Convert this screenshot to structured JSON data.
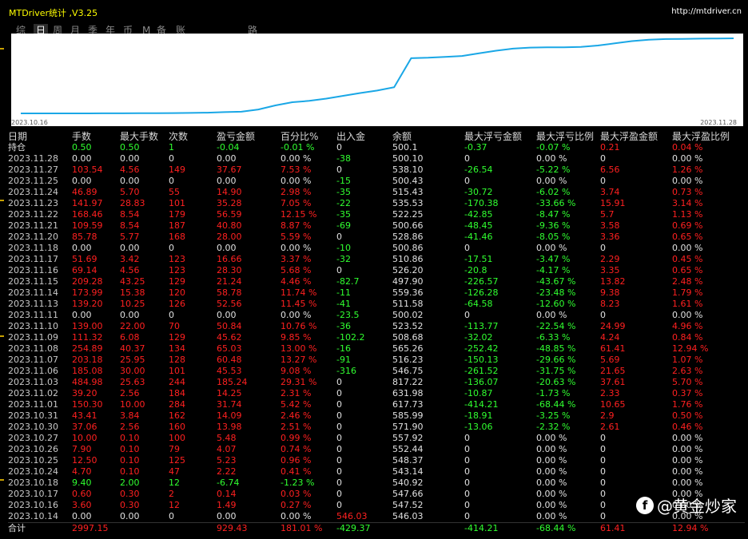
{
  "window": {
    "title": "MTDriver统计 ,V3.25",
    "url": "http://mtdriver.cn"
  },
  "tabs": [
    {
      "label": "综",
      "active": false
    },
    {
      "label": "日",
      "active": true
    },
    {
      "label": "周",
      "active": false
    },
    {
      "label": "月",
      "active": false
    },
    {
      "label": "季",
      "active": false
    },
    {
      "label": "年",
      "active": false
    },
    {
      "label": "币",
      "active": false
    },
    {
      "label": "M",
      "active": false
    },
    {
      "label": "备",
      "active": false
    },
    {
      "label": "账户",
      "active": false
    },
    {
      "label": "路径",
      "active": false
    }
  ],
  "chart_data": {
    "type": "line",
    "x_start": "2023.10.16",
    "x_end": "2023.11.28",
    "values": [
      501.2,
      501.2,
      501.2,
      501.3,
      501.4,
      501.5,
      501.7,
      502.1,
      502.7,
      503.2,
      504.0,
      505.2,
      508.7,
      510.6,
      523.5,
      546.8,
      565.3,
      573.0,
      586.0,
      601.7,
      617.7,
      631.98,
      651.1,
      817.22,
      820,
      825,
      830,
      845,
      860,
      872,
      878,
      880,
      880,
      882,
      890,
      902,
      915,
      923,
      927,
      928,
      929,
      930,
      931
    ],
    "line_color": "#1aa7e6",
    "grid": false
  },
  "columns": [
    "日期",
    "手数",
    "最大手数",
    "次数",
    "盈亏金额",
    "百分比%",
    "出入金",
    "余额",
    "最大浮亏金额",
    "最大浮亏比例",
    "最大浮盈金额",
    "最大浮盈比例"
  ],
  "rows": [
    {
      "c": [
        "持仓",
        "0.50",
        "0.50",
        "1",
        "-0.04",
        "-0.01 %",
        "0",
        "500.1",
        "-0.37",
        "-0.07 %",
        "0.21",
        "0.04 %"
      ],
      "k": [
        "wht",
        "green",
        "green",
        "green",
        "green",
        "green",
        "wht",
        "wht",
        "green",
        "green",
        "red",
        "red"
      ]
    },
    {
      "c": [
        "2023.11.28",
        "0.00",
        "0.00",
        "0",
        "0.00",
        "0.00 %",
        "-38",
        "500.10",
        "0",
        "0.00 %",
        "0",
        "0.00 %"
      ],
      "k": [
        "date",
        "wht",
        "wht",
        "wht",
        "wht",
        "wht",
        "green",
        "wht",
        "wht",
        "wht",
        "wht",
        "wht"
      ]
    },
    {
      "c": [
        "2023.11.27",
        "103.54",
        "4.56",
        "149",
        "37.67",
        "7.53 %",
        "0",
        "538.10",
        "-26.54",
        "-5.22 %",
        "6.56",
        "1.26 %"
      ],
      "k": [
        "date",
        "red",
        "red",
        "red",
        "red",
        "red",
        "wht",
        "wht",
        "green",
        "green",
        "red",
        "red"
      ]
    },
    {
      "c": [
        "2023.11.25",
        "0.00",
        "0.00",
        "0",
        "0.00",
        "0.00 %",
        "-15",
        "500.43",
        "0",
        "0.00 %",
        "0",
        "0.00 %"
      ],
      "k": [
        "date",
        "wht",
        "wht",
        "wht",
        "wht",
        "wht",
        "green",
        "wht",
        "wht",
        "wht",
        "wht",
        "wht"
      ]
    },
    {
      "c": [
        "2023.11.24",
        "46.89",
        "5.70",
        "55",
        "14.90",
        "2.98 %",
        "-35",
        "515.43",
        "-30.72",
        "-6.02 %",
        "3.74",
        "0.73 %"
      ],
      "k": [
        "date",
        "red",
        "red",
        "red",
        "red",
        "red",
        "green",
        "wht",
        "green",
        "green",
        "red",
        "red"
      ]
    },
    {
      "c": [
        "2023.11.23",
        "141.97",
        "28.83",
        "101",
        "35.28",
        "7.05 %",
        "-22",
        "535.53",
        "-170.38",
        "-33.66 %",
        "15.91",
        "3.14 %"
      ],
      "k": [
        "date",
        "red",
        "red",
        "red",
        "red",
        "red",
        "green",
        "wht",
        "green",
        "green",
        "red",
        "red"
      ]
    },
    {
      "c": [
        "2023.11.22",
        "168.46",
        "8.54",
        "179",
        "56.59",
        "12.15 %",
        "-35",
        "522.25",
        "-42.85",
        "-8.47 %",
        "5.7",
        "1.13 %"
      ],
      "k": [
        "date",
        "red",
        "red",
        "red",
        "red",
        "red",
        "green",
        "wht",
        "green",
        "green",
        "red",
        "red"
      ]
    },
    {
      "c": [
        "2023.11.21",
        "109.59",
        "8.54",
        "187",
        "40.80",
        "8.87 %",
        "-69",
        "500.66",
        "-48.45",
        "-9.36 %",
        "3.58",
        "0.69 %"
      ],
      "k": [
        "date",
        "red",
        "red",
        "red",
        "red",
        "red",
        "green",
        "wht",
        "green",
        "green",
        "red",
        "red"
      ]
    },
    {
      "c": [
        "2023.11.20",
        "85.78",
        "5.77",
        "168",
        "28.00",
        "5.59 %",
        "0",
        "528.86",
        "-41.46",
        "-8.05 %",
        "3.36",
        "0.65 %"
      ],
      "k": [
        "date",
        "red",
        "red",
        "red",
        "red",
        "red",
        "wht",
        "wht",
        "green",
        "green",
        "red",
        "red"
      ]
    },
    {
      "c": [
        "2023.11.18",
        "0.00",
        "0.00",
        "0",
        "0.00",
        "0.00 %",
        "-10",
        "500.86",
        "0",
        "0.00 %",
        "0",
        "0.00 %"
      ],
      "k": [
        "date",
        "wht",
        "wht",
        "wht",
        "wht",
        "wht",
        "green",
        "wht",
        "wht",
        "wht",
        "wht",
        "wht"
      ]
    },
    {
      "c": [
        "2023.11.17",
        "51.69",
        "3.42",
        "123",
        "16.66",
        "3.37 %",
        "-32",
        "510.86",
        "-17.51",
        "-3.47 %",
        "2.29",
        "0.45 %"
      ],
      "k": [
        "date",
        "red",
        "red",
        "red",
        "red",
        "red",
        "green",
        "wht",
        "green",
        "green",
        "red",
        "red"
      ]
    },
    {
      "c": [
        "2023.11.16",
        "69.14",
        "4.56",
        "123",
        "28.30",
        "5.68 %",
        "0",
        "526.20",
        "-20.8",
        "-4.17 %",
        "3.35",
        "0.65 %"
      ],
      "k": [
        "date",
        "red",
        "red",
        "red",
        "red",
        "red",
        "wht",
        "wht",
        "green",
        "green",
        "red",
        "red"
      ]
    },
    {
      "c": [
        "2023.11.15",
        "209.28",
        "43.25",
        "129",
        "21.24",
        "4.46 %",
        "-82.7",
        "497.90",
        "-226.57",
        "-43.67 %",
        "13.82",
        "2.48 %"
      ],
      "k": [
        "date",
        "red",
        "red",
        "red",
        "red",
        "red",
        "green",
        "wht",
        "green",
        "green",
        "red",
        "red"
      ]
    },
    {
      "c": [
        "2023.11.14",
        "173.99",
        "15.38",
        "120",
        "58.78",
        "11.74 %",
        "-11",
        "559.36",
        "-126.28",
        "-23.48 %",
        "9.38",
        "1.79 %"
      ],
      "k": [
        "date",
        "red",
        "red",
        "red",
        "red",
        "red",
        "green",
        "wht",
        "green",
        "green",
        "red",
        "red"
      ]
    },
    {
      "c": [
        "2023.11.13",
        "139.20",
        "10.25",
        "126",
        "52.56",
        "11.45 %",
        "-41",
        "511.58",
        "-64.58",
        "-12.60 %",
        "8.23",
        "1.61 %"
      ],
      "k": [
        "date",
        "red",
        "red",
        "red",
        "red",
        "red",
        "green",
        "wht",
        "green",
        "green",
        "red",
        "red"
      ]
    },
    {
      "c": [
        "2023.11.11",
        "0.00",
        "0.00",
        "0",
        "0.00",
        "0.00 %",
        "-23.5",
        "500.02",
        "0",
        "0.00 %",
        "0",
        "0.00 %"
      ],
      "k": [
        "date",
        "wht",
        "wht",
        "wht",
        "wht",
        "wht",
        "green",
        "wht",
        "wht",
        "wht",
        "wht",
        "wht"
      ]
    },
    {
      "c": [
        "2023.11.10",
        "139.00",
        "22.00",
        "70",
        "50.84",
        "10.76 %",
        "-36",
        "523.52",
        "-113.77",
        "-22.54 %",
        "24.99",
        "4.96 %"
      ],
      "k": [
        "date",
        "red",
        "red",
        "red",
        "red",
        "red",
        "green",
        "wht",
        "green",
        "green",
        "red",
        "red"
      ]
    },
    {
      "c": [
        "2023.11.09",
        "111.32",
        "6.08",
        "129",
        "45.62",
        "9.85 %",
        "-102.2",
        "508.68",
        "-32.02",
        "-6.33 %",
        "4.24",
        "0.84 %"
      ],
      "k": [
        "date",
        "red",
        "red",
        "red",
        "red",
        "red",
        "green",
        "wht",
        "green",
        "green",
        "red",
        "red"
      ]
    },
    {
      "c": [
        "2023.11.08",
        "254.89",
        "40.37",
        "134",
        "65.03",
        "13.00 %",
        "-16",
        "565.26",
        "-252.42",
        "-48.85 %",
        "61.41",
        "12.94 %"
      ],
      "k": [
        "date",
        "red",
        "red",
        "red",
        "red",
        "red",
        "green",
        "wht",
        "green",
        "green",
        "red",
        "red"
      ]
    },
    {
      "c": [
        "2023.11.07",
        "203.18",
        "25.95",
        "128",
        "60.48",
        "13.27 %",
        "-91",
        "516.23",
        "-150.13",
        "-29.66 %",
        "5.69",
        "1.07 %"
      ],
      "k": [
        "date",
        "red",
        "red",
        "red",
        "red",
        "red",
        "green",
        "wht",
        "green",
        "green",
        "red",
        "red"
      ]
    },
    {
      "c": [
        "2023.11.06",
        "185.08",
        "30.00",
        "101",
        "45.53",
        "9.08 %",
        "-316",
        "546.75",
        "-261.52",
        "-31.75 %",
        "21.65",
        "2.63 %"
      ],
      "k": [
        "date",
        "red",
        "red",
        "red",
        "red",
        "red",
        "green",
        "wht",
        "green",
        "green",
        "red",
        "red"
      ]
    },
    {
      "c": [
        "2023.11.03",
        "484.98",
        "25.63",
        "244",
        "185.24",
        "29.31 %",
        "0",
        "817.22",
        "-136.07",
        "-20.63 %",
        "37.61",
        "5.70 %"
      ],
      "k": [
        "date",
        "red",
        "red",
        "red",
        "red",
        "red",
        "wht",
        "wht",
        "green",
        "green",
        "red",
        "red"
      ]
    },
    {
      "c": [
        "2023.11.02",
        "39.20",
        "2.56",
        "184",
        "14.25",
        "2.31 %",
        "0",
        "631.98",
        "-10.87",
        "-1.73 %",
        "2.33",
        "0.37 %"
      ],
      "k": [
        "date",
        "red",
        "red",
        "red",
        "red",
        "red",
        "wht",
        "wht",
        "green",
        "green",
        "red",
        "red"
      ]
    },
    {
      "c": [
        "2023.11.01",
        "150.30",
        "10.00",
        "284",
        "31.74",
        "5.42 %",
        "0",
        "617.73",
        "-414.21",
        "-68.44 %",
        "10.65",
        "1.76 %"
      ],
      "k": [
        "date",
        "red",
        "red",
        "red",
        "red",
        "red",
        "wht",
        "wht",
        "green",
        "green",
        "red",
        "red"
      ]
    },
    {
      "c": [
        "2023.10.31",
        "43.41",
        "3.84",
        "162",
        "14.09",
        "2.46 %",
        "0",
        "585.99",
        "-18.91",
        "-3.25 %",
        "2.9",
        "0.50 %"
      ],
      "k": [
        "date",
        "red",
        "red",
        "red",
        "red",
        "red",
        "wht",
        "wht",
        "green",
        "green",
        "red",
        "red"
      ]
    },
    {
      "c": [
        "2023.10.30",
        "37.06",
        "2.56",
        "160",
        "13.98",
        "2.51 %",
        "0",
        "571.90",
        "-13.06",
        "-2.32 %",
        "2.61",
        "0.46 %"
      ],
      "k": [
        "date",
        "red",
        "red",
        "red",
        "red",
        "red",
        "wht",
        "wht",
        "green",
        "green",
        "red",
        "red"
      ]
    },
    {
      "c": [
        "2023.10.27",
        "10.00",
        "0.10",
        "100",
        "5.48",
        "0.99 %",
        "0",
        "557.92",
        "0",
        "0.00 %",
        "0",
        "0.00 %"
      ],
      "k": [
        "date",
        "red",
        "red",
        "red",
        "red",
        "red",
        "wht",
        "wht",
        "wht",
        "wht",
        "wht",
        "wht"
      ]
    },
    {
      "c": [
        "2023.10.26",
        "7.90",
        "0.10",
        "79",
        "4.07",
        "0.74 %",
        "0",
        "552.44",
        "0",
        "0.00 %",
        "0",
        "0.00 %"
      ],
      "k": [
        "date",
        "red",
        "red",
        "red",
        "red",
        "red",
        "wht",
        "wht",
        "wht",
        "wht",
        "wht",
        "wht"
      ]
    },
    {
      "c": [
        "2023.10.25",
        "12.50",
        "0.10",
        "125",
        "5.23",
        "0.96 %",
        "0",
        "548.37",
        "0",
        "0.00 %",
        "0",
        "0.00 %"
      ],
      "k": [
        "date",
        "red",
        "red",
        "red",
        "red",
        "red",
        "wht",
        "wht",
        "wht",
        "wht",
        "wht",
        "wht"
      ]
    },
    {
      "c": [
        "2023.10.24",
        "4.70",
        "0.10",
        "47",
        "2.22",
        "0.41 %",
        "0",
        "543.14",
        "0",
        "0.00 %",
        "0",
        "0.00 %"
      ],
      "k": [
        "date",
        "red",
        "red",
        "red",
        "red",
        "red",
        "wht",
        "wht",
        "wht",
        "wht",
        "wht",
        "wht"
      ]
    },
    {
      "c": [
        "2023.10.18",
        "9.40",
        "2.00",
        "12",
        "-6.74",
        "-1.23 %",
        "0",
        "540.92",
        "0",
        "0.00 %",
        "0",
        "0.00 %"
      ],
      "k": [
        "date",
        "green",
        "green",
        "green",
        "green",
        "green",
        "wht",
        "wht",
        "wht",
        "wht",
        "wht",
        "wht"
      ]
    },
    {
      "c": [
        "2023.10.17",
        "0.60",
        "0.30",
        "2",
        "0.14",
        "0.03 %",
        "0",
        "547.66",
        "0",
        "0.00 %",
        "0",
        "0.00 %"
      ],
      "k": [
        "date",
        "red",
        "red",
        "red",
        "red",
        "red",
        "wht",
        "wht",
        "wht",
        "wht",
        "wht",
        "wht"
      ]
    },
    {
      "c": [
        "2023.10.16",
        "3.60",
        "0.30",
        "12",
        "1.49",
        "0.27 %",
        "0",
        "547.52",
        "0",
        "0.00 %",
        "0",
        "0.00 %"
      ],
      "k": [
        "date",
        "red",
        "red",
        "red",
        "red",
        "red",
        "wht",
        "wht",
        "wht",
        "wht",
        "wht",
        "wht"
      ]
    },
    {
      "c": [
        "2023.10.14",
        "0.00",
        "0.00",
        "0",
        "0.00",
        "0.00 %",
        "546.03",
        "546.03",
        "0",
        "0.00 %",
        "0",
        "0.00 %"
      ],
      "k": [
        "date",
        "wht",
        "wht",
        "wht",
        "wht",
        "wht",
        "red",
        "wht",
        "wht",
        "wht",
        "wht",
        "wht"
      ]
    }
  ],
  "total": {
    "c": [
      "合计",
      "2997.15",
      "",
      "",
      "929.43",
      "181.01 %",
      "-429.37",
      "",
      "-414.21",
      "-68.44 %",
      "61.41",
      "12.94 %"
    ],
    "k": [
      "wht",
      "red",
      "wht",
      "wht",
      "red",
      "red",
      "green",
      "wht",
      "green",
      "green",
      "red",
      "red"
    ]
  },
  "watermark": {
    "icon_letter": "f",
    "text": "@黄金炒家"
  },
  "colors": {
    "profit": "#ff2020",
    "loss": "#30ff30",
    "equity_line": "#1aa7e6"
  }
}
